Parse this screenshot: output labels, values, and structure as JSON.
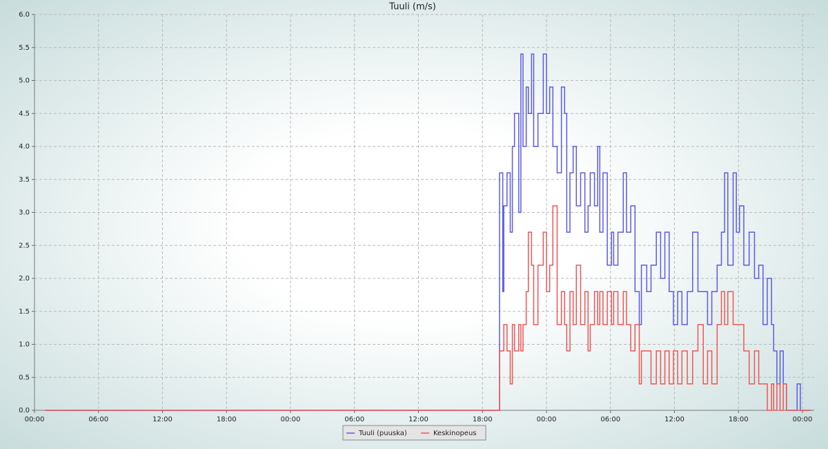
{
  "chart_data": {
    "type": "step",
    "title": "Tuuli (m/s)",
    "x": [
      1.0,
      43.5,
      43.6,
      43.9,
      44.0,
      44.3,
      44.6,
      44.8,
      45.0,
      45.4,
      45.6,
      45.8,
      46.1,
      46.3,
      46.6,
      46.8,
      47.2,
      47.7,
      48.0,
      48.3,
      48.6,
      49.0,
      49.4,
      49.7,
      49.9,
      50.2,
      50.5,
      50.8,
      51.2,
      51.6,
      51.9,
      52.1,
      52.5,
      52.8,
      53.0,
      53.3,
      53.7,
      54.1,
      54.3,
      54.7,
      55.2,
      55.5,
      55.9,
      56.3,
      56.7,
      56.9,
      57.4,
      57.8,
      58.3,
      58.7,
      59.1,
      59.5,
      59.9,
      60.3,
      60.7,
      61.2,
      61.7,
      62.2,
      62.7,
      63.1,
      63.5,
      64.0,
      64.4,
      64.7,
      65.0,
      65.5,
      65.8,
      66.1,
      66.5,
      67.0,
      67.5,
      67.9,
      68.3,
      68.7,
      69.1,
      69.3,
      69.6,
      69.9,
      70.2,
      70.5,
      71.5,
      71.8,
      72.8
    ],
    "series": [
      {
        "name": "Tuuli (puuska)",
        "color": "#5a5ae6",
        "values": [
          0,
          0,
          3.6,
          1.8,
          3.1,
          3.6,
          2.7,
          4.0,
          4.5,
          3.0,
          5.4,
          4.0,
          4.9,
          4.5,
          5.4,
          4.0,
          4.5,
          5.4,
          4.5,
          4.9,
          4.0,
          3.6,
          4.9,
          4.5,
          2.7,
          3.6,
          4.0,
          3.1,
          3.6,
          2.7,
          3.1,
          3.6,
          3.1,
          4.0,
          2.7,
          3.6,
          2.2,
          2.7,
          2.2,
          2.7,
          3.6,
          2.7,
          3.1,
          1.8,
          1.3,
          2.2,
          1.8,
          2.2,
          2.7,
          2.0,
          2.7,
          1.8,
          1.3,
          1.8,
          1.3,
          1.8,
          2.7,
          1.8,
          1.8,
          1.3,
          1.8,
          2.2,
          2.7,
          3.6,
          2.2,
          3.6,
          2.7,
          3.1,
          2.2,
          2.7,
          2.0,
          2.2,
          1.3,
          2.0,
          1.3,
          0.9,
          0.4,
          0.9,
          0.4,
          0,
          0.4,
          0,
          0
        ]
      },
      {
        "name": "Keskinopeus",
        "color": "#ee5555",
        "values": [
          0,
          0,
          0.9,
          0.9,
          1.3,
          0.9,
          0.4,
          1.3,
          0.9,
          1.3,
          0.9,
          1.3,
          1.8,
          2.7,
          2.2,
          1.3,
          2.2,
          2.7,
          1.8,
          2.2,
          3.1,
          1.3,
          1.8,
          1.3,
          0.9,
          1.8,
          1.3,
          2.2,
          1.3,
          1.8,
          0.9,
          1.3,
          1.8,
          1.3,
          1.8,
          1.3,
          1.8,
          1.3,
          1.8,
          1.3,
          1.8,
          1.3,
          0.9,
          1.3,
          0.4,
          0.9,
          0.9,
          0.4,
          0.9,
          0.4,
          0.9,
          0.4,
          0.9,
          0.4,
          0.9,
          0.4,
          0.9,
          1.3,
          0.4,
          0.9,
          0.4,
          1.3,
          1.8,
          1.3,
          1.8,
          1.3,
          1.3,
          1.3,
          0.9,
          0.4,
          0.9,
          0.4,
          0.4,
          0,
          0.4,
          0,
          0.4,
          0,
          0.4,
          0,
          0,
          0,
          0
        ]
      }
    ],
    "xlim": [
      0,
      73.1
    ],
    "xticks": [
      {
        "value": 0,
        "label": "00:00"
      },
      {
        "value": 6,
        "label": "06:00"
      },
      {
        "value": 12,
        "label": "12:00"
      },
      {
        "value": 18,
        "label": "18:00"
      },
      {
        "value": 24,
        "label": "00:00"
      },
      {
        "value": 30,
        "label": "06:00"
      },
      {
        "value": 36,
        "label": "12:00"
      },
      {
        "value": 42,
        "label": "18:00"
      },
      {
        "value": 48,
        "label": "00:00"
      },
      {
        "value": 54,
        "label": "06:00"
      },
      {
        "value": 60,
        "label": "12:00"
      },
      {
        "value": 66,
        "label": "18:00"
      },
      {
        "value": 72,
        "label": "00:00"
      }
    ],
    "ylim": [
      0,
      6
    ],
    "yticks": [
      {
        "value": 0,
        "label": "0.0"
      },
      0.5,
      {
        "value": 1,
        "label": "1.0"
      },
      1.5,
      {
        "value": 2,
        "label": "2.0"
      },
      2.5,
      {
        "value": 3,
        "label": "3.0"
      },
      3.5,
      {
        "value": 4,
        "label": "4.0"
      },
      4.5,
      {
        "value": 5,
        "label": "5.0"
      },
      5.5,
      {
        "value": 6,
        "label": "6.0"
      }
    ],
    "grid": true,
    "legend": "bottom"
  }
}
